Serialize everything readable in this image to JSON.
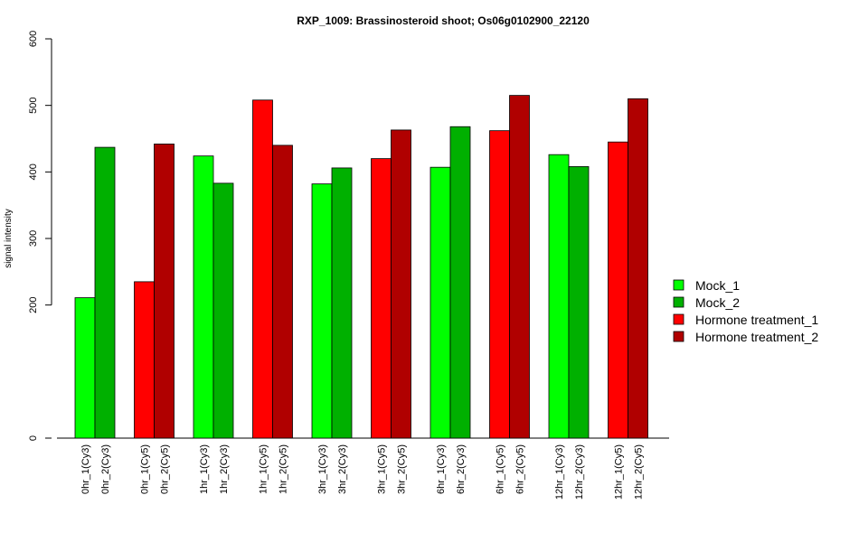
{
  "chart_data": {
    "type": "bar",
    "title": "RXP_1009: Brassinosteroid shoot; Os06g0102900_22120",
    "ylabel": "signal intensity",
    "xlabel": "",
    "ylim": [
      0,
      600
    ],
    "yticks": [
      "0",
      "200",
      "300",
      "400",
      "500",
      "600"
    ],
    "ytick_values": [
      0,
      200,
      300,
      400,
      500,
      600
    ],
    "grid": false,
    "legend_position": "right",
    "legend": [
      {
        "label": "Mock_1",
        "color": "#00ff00"
      },
      {
        "label": "Mock_2",
        "color": "#00b000"
      },
      {
        "label": "Hormone treatment_1",
        "color": "#ff0000"
      },
      {
        "label": "Hormone treatment_2",
        "color": "#b00000"
      }
    ],
    "groups": [
      {
        "bars": [
          {
            "label": "0hr_1(Cy3)",
            "value": 211,
            "color": "#00ff00"
          },
          {
            "label": "0hr_2(Cy3)",
            "value": 437,
            "color": "#00b000"
          }
        ]
      },
      {
        "bars": [
          {
            "label": "0hr_1(Cy5)",
            "value": 235,
            "color": "#ff0000"
          },
          {
            "label": "0hr_2(Cy5)",
            "value": 442,
            "color": "#b00000"
          }
        ]
      },
      {
        "bars": [
          {
            "label": "1hr_1(Cy3)",
            "value": 424,
            "color": "#00ff00"
          },
          {
            "label": "1hr_2(Cy3)",
            "value": 383,
            "color": "#00b000"
          }
        ]
      },
      {
        "bars": [
          {
            "label": "1hr_1(Cy5)",
            "value": 508,
            "color": "#ff0000"
          },
          {
            "label": "1hr_2(Cy5)",
            "value": 440,
            "color": "#b00000"
          }
        ]
      },
      {
        "bars": [
          {
            "label": "3hr_1(Cy3)",
            "value": 382,
            "color": "#00ff00"
          },
          {
            "label": "3hr_2(Cy3)",
            "value": 406,
            "color": "#00b000"
          }
        ]
      },
      {
        "bars": [
          {
            "label": "3hr_1(Cy5)",
            "value": 420,
            "color": "#ff0000"
          },
          {
            "label": "3hr_2(Cy5)",
            "value": 463,
            "color": "#b00000"
          }
        ]
      },
      {
        "bars": [
          {
            "label": "6hr_1(Cy3)",
            "value": 407,
            "color": "#00ff00"
          },
          {
            "label": "6hr_2(Cy3)",
            "value": 468,
            "color": "#00b000"
          }
        ]
      },
      {
        "bars": [
          {
            "label": "6hr_1(Cy5)",
            "value": 462,
            "color": "#ff0000"
          },
          {
            "label": "6hr_2(Cy5)",
            "value": 515,
            "color": "#b00000"
          }
        ]
      },
      {
        "bars": [
          {
            "label": "12hr_1(Cy3)",
            "value": 426,
            "color": "#00ff00"
          },
          {
            "label": "12hr_2(Cy3)",
            "value": 408,
            "color": "#00b000"
          }
        ]
      },
      {
        "bars": [
          {
            "label": "12hr_1(Cy5)",
            "value": 445,
            "color": "#ff0000"
          },
          {
            "label": "12hr_2(Cy5)",
            "value": 510,
            "color": "#b00000"
          }
        ]
      }
    ]
  }
}
